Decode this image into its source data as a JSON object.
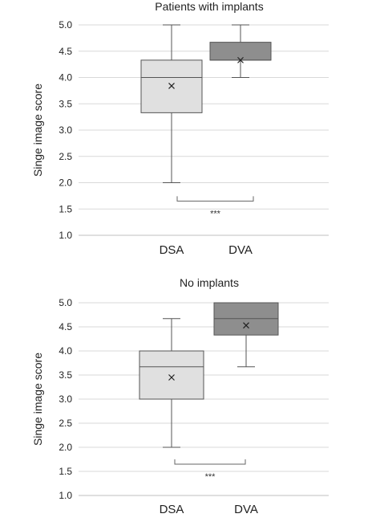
{
  "chart_data": [
    {
      "type": "box",
      "title": "Patients with implants",
      "ylabel": "Singe image score",
      "xlabel": "",
      "ylim": [
        1.0,
        5.0
      ],
      "yticks": [
        "1.0",
        "1.5",
        "2.0",
        "2.5",
        "3.0",
        "3.5",
        "4.0",
        "4.5",
        "5.0"
      ],
      "grid": true,
      "categories": [
        "DSA",
        "DVA"
      ],
      "boxes": [
        {
          "category": "DSA",
          "min": 2.0,
          "q1": 3.33,
          "median": 4.0,
          "q3": 4.33,
          "max": 5.0,
          "mean": 3.84,
          "fill": "#e0e0e0"
        },
        {
          "category": "DVA",
          "min": 4.0,
          "q1": 4.33,
          "median": 4.33,
          "q3": 4.67,
          "max": 5.0,
          "mean": 4.33,
          "fill": "#8e8e8e"
        }
      ],
      "significance": {
        "from": "DSA",
        "to": "DVA",
        "label": "***",
        "y": 1.65
      }
    },
    {
      "type": "box",
      "title": "No implants",
      "ylabel": "Singe image score",
      "xlabel": "",
      "ylim": [
        1.0,
        5.0
      ],
      "yticks": [
        "1.0",
        "1.5",
        "2.0",
        "2.5",
        "3.0",
        "3.5",
        "4.0",
        "4.5",
        "5.0"
      ],
      "grid": true,
      "categories": [
        "DSA",
        "DVA"
      ],
      "boxes": [
        {
          "category": "DSA",
          "min": 2.0,
          "q1": 3.0,
          "median": 3.67,
          "q3": 4.0,
          "max": 4.67,
          "mean": 3.45,
          "fill": "#e0e0e0"
        },
        {
          "category": "DVA",
          "min": 3.67,
          "q1": 4.33,
          "median": 4.67,
          "q3": 5.0,
          "max": 5.0,
          "mean": 4.53,
          "fill": "#8e8e8e"
        }
      ],
      "significance": {
        "from": "DSA",
        "to": "DVA",
        "label": "***",
        "y": 1.65
      }
    }
  ],
  "colors": {
    "grid": "#d9d9d9",
    "axis": "#bfbfbf",
    "stroke": "#555555"
  }
}
